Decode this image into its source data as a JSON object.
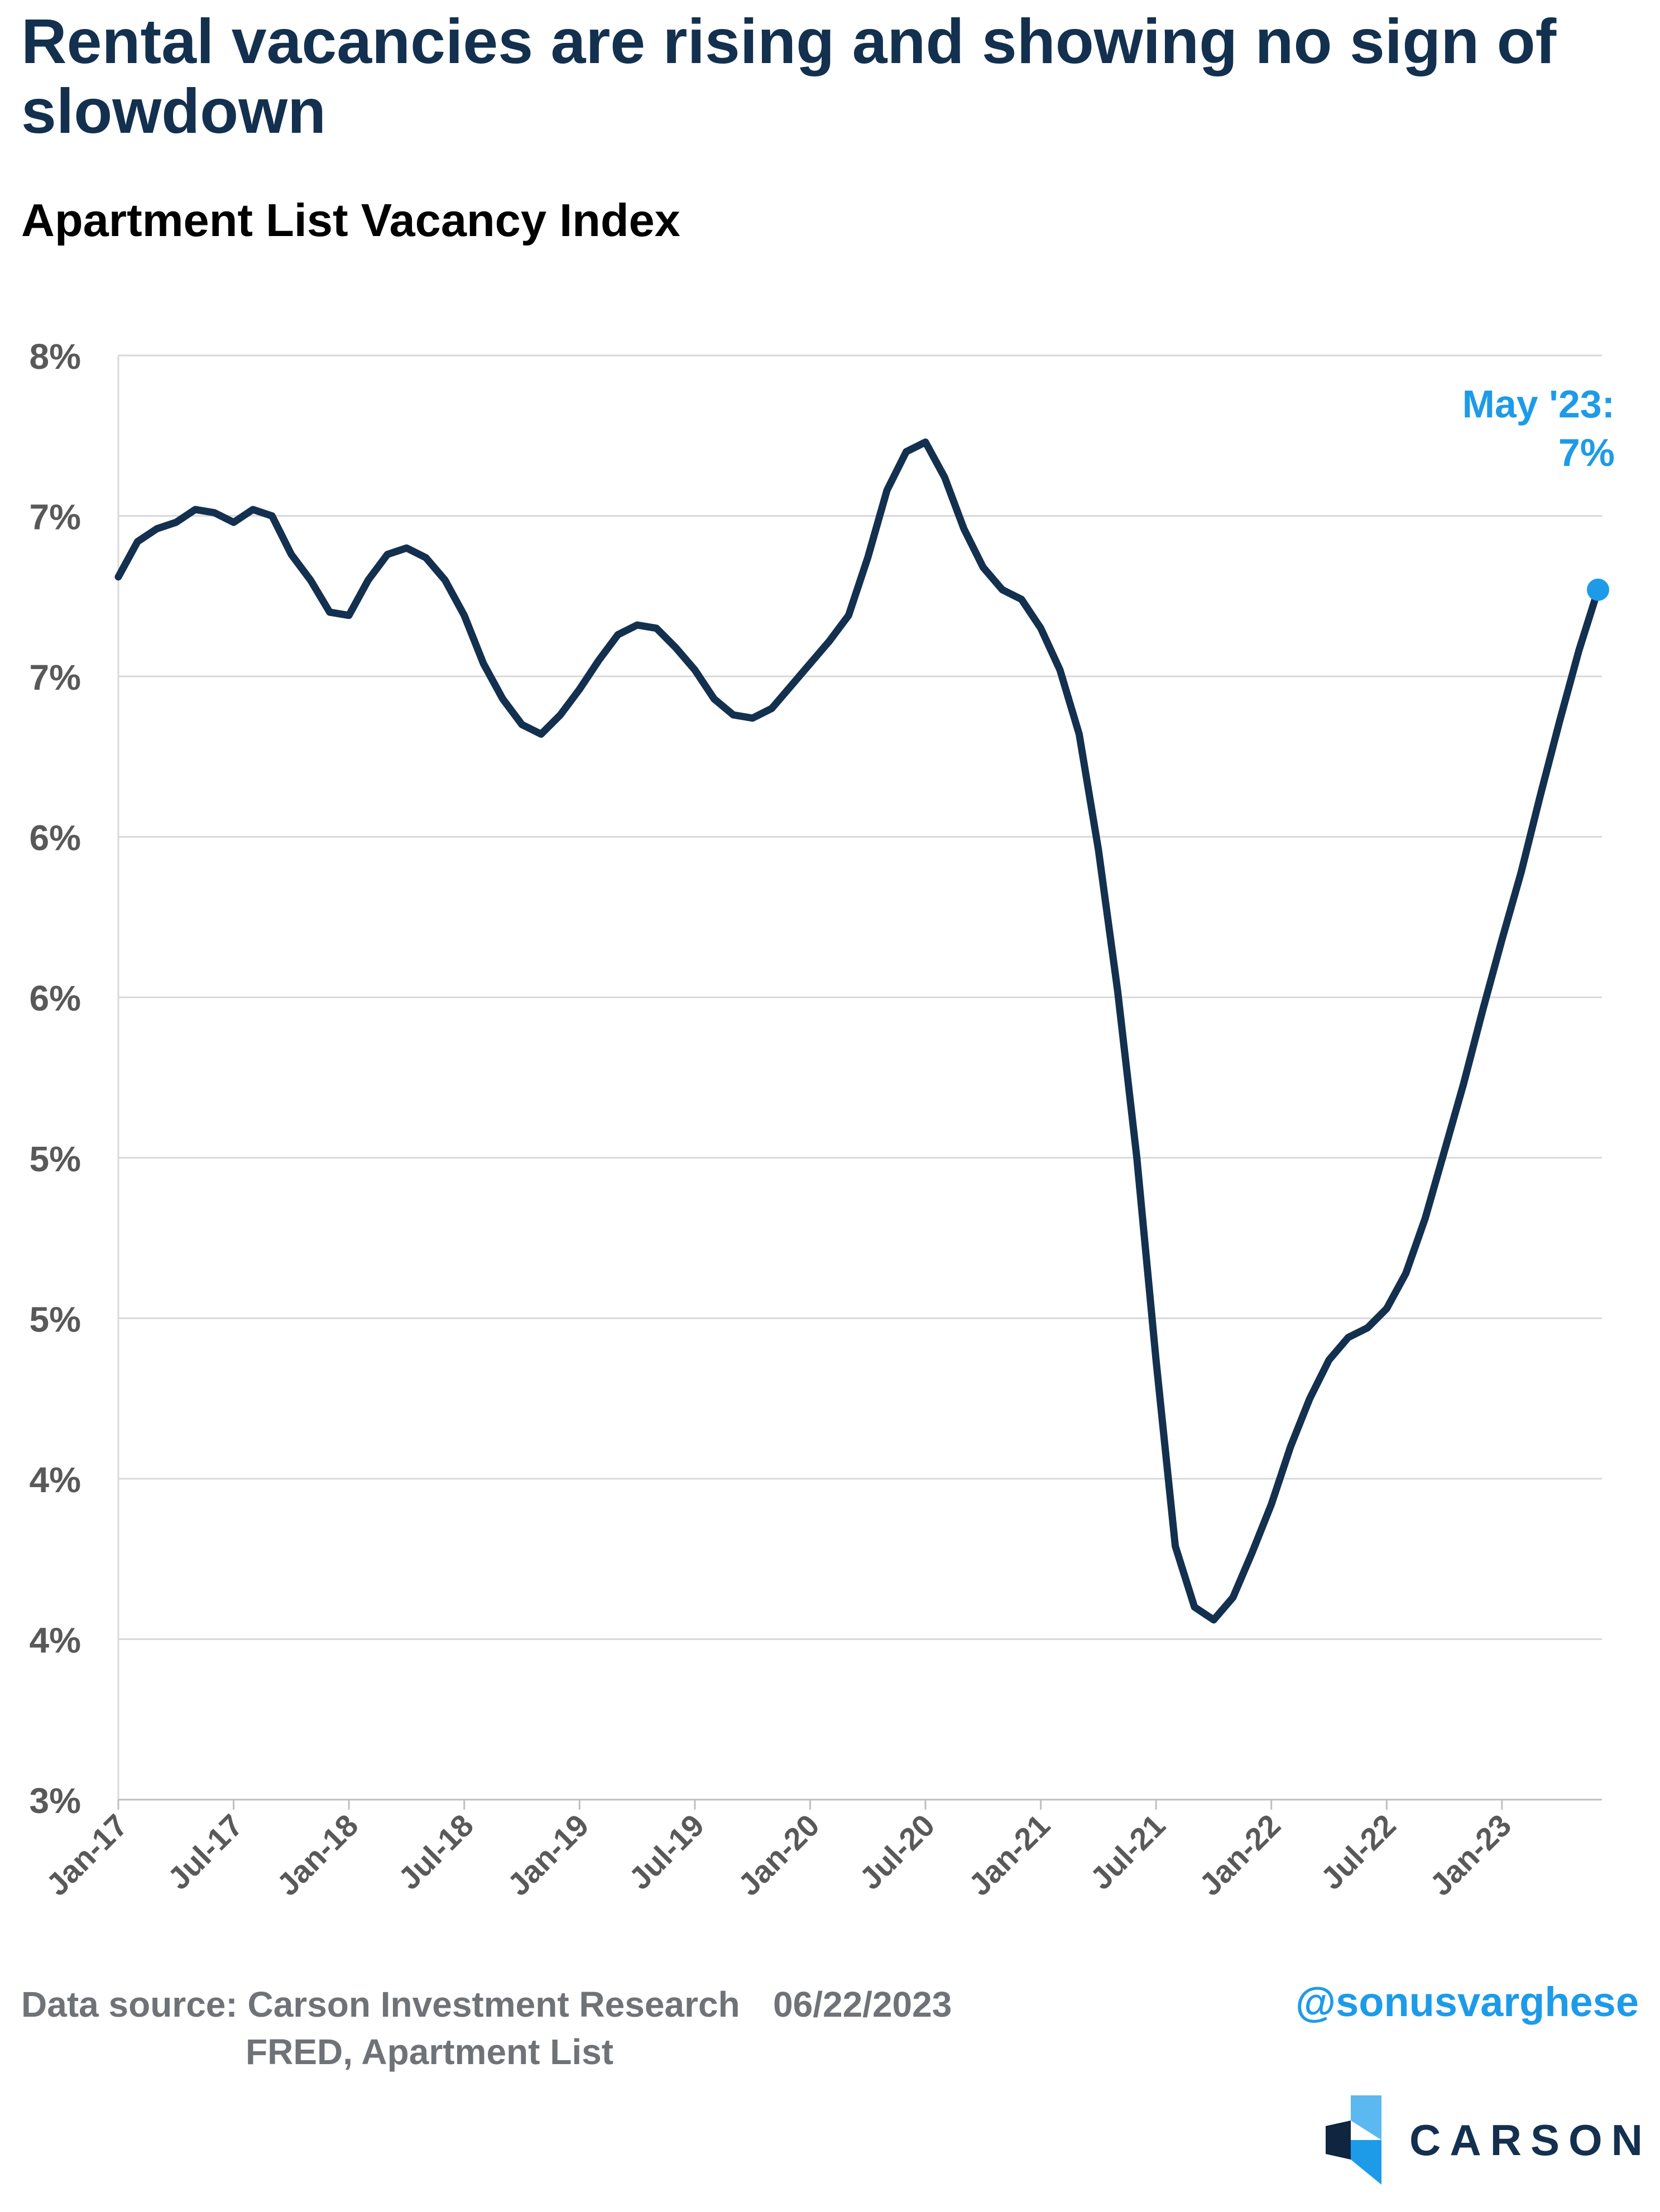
{
  "header": {
    "title": "Rental vacancies are rising and showing no sign of slowdown",
    "subtitle": "Apartment List Vacancy Index"
  },
  "colors": {
    "line": "#13304f",
    "highlight": "#1e9be8",
    "grid": "#d9d9d9",
    "axis_text": "#595959"
  },
  "chart_data": {
    "type": "line",
    "title": "Apartment List Vacancy Index",
    "xlabel": "",
    "ylabel": "",
    "ylim": [
      3.0,
      7.5
    ],
    "y_ticks": [
      3.0,
      3.5,
      4.0,
      4.5,
      5.0,
      5.5,
      6.0,
      6.5,
      7.0,
      7.5
    ],
    "y_tick_labels": [
      "3%",
      "4%",
      "4%",
      "5%",
      "5%",
      "6%",
      "6%",
      "7%",
      "7%",
      "8%"
    ],
    "x_tick_labels": [
      "Jan-17",
      "Jul-17",
      "Jan-18",
      "Jul-18",
      "Jan-19",
      "Jul-19",
      "Jan-20",
      "Jul-20",
      "Jan-21",
      "Jul-21",
      "Jan-22",
      "Jul-22",
      "Jan-23"
    ],
    "x_tick_index": [
      0,
      6,
      12,
      18,
      24,
      30,
      36,
      42,
      48,
      54,
      60,
      66,
      72
    ],
    "grid": "horizontal",
    "series": [
      {
        "start": "Jan-17",
        "frequency": "monthly",
        "values": [
          6.81,
          6.92,
          6.96,
          6.98,
          7.02,
          7.01,
          6.98,
          7.02,
          7.0,
          6.88,
          6.8,
          6.7,
          6.69,
          6.8,
          6.88,
          6.9,
          6.87,
          6.8,
          6.69,
          6.54,
          6.43,
          6.35,
          6.32,
          6.38,
          6.46,
          6.55,
          6.63,
          6.66,
          6.65,
          6.59,
          6.52,
          6.43,
          6.38,
          6.37,
          6.4,
          6.47,
          6.54,
          6.61,
          6.69,
          6.87,
          7.08,
          7.2,
          7.23,
          7.12,
          6.96,
          6.84,
          6.77,
          6.74,
          6.65,
          6.52,
          6.32,
          5.96,
          5.52,
          5.0,
          4.37,
          3.79,
          3.6,
          3.56,
          3.63,
          3.77,
          3.92,
          4.1,
          4.25,
          4.37,
          4.44,
          4.47,
          4.53,
          4.64,
          4.81,
          5.02,
          5.23,
          5.46,
          5.68,
          5.89,
          6.13,
          6.36,
          6.58,
          6.77
        ]
      }
    ],
    "annotations": [
      {
        "point": "May-23",
        "value": 6.77,
        "label_line1": "May '23:",
        "label_line2": "7%"
      }
    ]
  },
  "footer": {
    "source_line1": "Data source: Carson Investment Research",
    "source_line2": "FRED, Apartment List",
    "date": "06/22/2023",
    "handle": "@sonusvarghese",
    "logo_text": "CARSON"
  }
}
